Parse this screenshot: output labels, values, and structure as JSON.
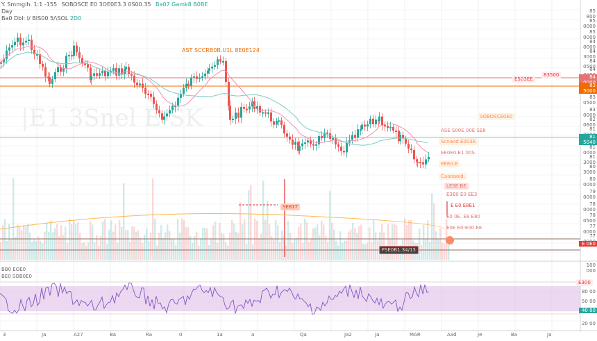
{
  "legend": {
    "symbol_line": "Y. Smmgih. 1:1 -155",
    "ohlc_text": "SOBOSCE E0 3OE0E3.3 0S00.35",
    "accent_text": "Ba07 Gamk8 B0BE",
    "line2": "Day",
    "line3": "Ba0 Dbl: I/ BIS00 5/\\SOL",
    "line3_accent": "2D0"
  },
  "overlay": {
    "watermark": "|E1 3Snel E SK",
    "label_top": "AST SCCRB0B.U1L 8E0E124",
    "label_mid": "SE81T",
    "label_box": "FSE0B1.34/13"
  },
  "right_labels": [
    {
      "y": 16,
      "text": "85 800"
    },
    {
      "y": 30,
      "text": "85 0000"
    },
    {
      "y": 46,
      "text": "85 0000"
    },
    {
      "y": 60,
      "text": "84 0000"
    },
    {
      "y": 74,
      "text": "84 3000"
    },
    {
      "y": 88,
      "text": "84 0500"
    },
    {
      "y": 100,
      "text": "84 0000"
    },
    {
      "y": 140,
      "text": "83 0500"
    },
    {
      "y": 158,
      "text": "83 0000"
    },
    {
      "y": 172,
      "text": "82 0600"
    },
    {
      "y": 186,
      "text": "81 0800"
    },
    {
      "y": 212,
      "text": "81 0000"
    },
    {
      "y": 226,
      "text": "81 3000"
    },
    {
      "y": 240,
      "text": "80 3000"
    },
    {
      "y": 258,
      "text": "80 0000"
    },
    {
      "y": 276,
      "text": "79 0000"
    },
    {
      "y": 294,
      "text": "78 0000"
    },
    {
      "y": 310,
      "text": "78 0500"
    },
    {
      "y": 326,
      "text": "77 0000"
    },
    {
      "y": 340,
      "text": "77 0000"
    },
    {
      "y": 382,
      "text": "100 000"
    },
    {
      "y": 420,
      "text": "80 00"
    },
    {
      "y": 434,
      "text": "50 00"
    },
    {
      "y": 466,
      "text": "20 00"
    }
  ],
  "price_tags": [
    {
      "y": 112,
      "text": "84 0000",
      "color": "#e57373"
    },
    {
      "y": 124,
      "text": "83 5000",
      "color": "#ef6c00"
    },
    {
      "y": 198,
      "text": "81 5040",
      "color": "#26a69a"
    },
    {
      "y": 352,
      "text": "E 0E0",
      "color": "#e53935"
    },
    {
      "y": 448,
      "text": "40 80",
      "color": "#26a69a"
    }
  ],
  "mid_tags": [
    {
      "x": 810,
      "y": 108,
      "text": "83500"
    },
    {
      "x": 768,
      "y": 114,
      "text": "E503EE"
    },
    {
      "x": 860,
      "y": 407,
      "text": "E300"
    }
  ],
  "annotations": [
    {
      "x": 688,
      "y": 168,
      "text": "SOBOSCE0E0",
      "color": "#ff8a65",
      "bg": "#fff3e0"
    },
    {
      "x": 632,
      "y": 188,
      "text": "ASE S00E 00E SE8",
      "color": "#e57373",
      "bg": "transparent"
    },
    {
      "x": 632,
      "y": 204,
      "text": "Scnaod E003E",
      "color": "#ff8a65",
      "bg": "#fff3e0"
    },
    {
      "x": 632,
      "y": 220,
      "text": "EE0E0.E1 00S.",
      "color": "#e57373",
      "bg": "transparent"
    },
    {
      "x": 632,
      "y": 236,
      "text": "EEE0.E",
      "color": "#ff8a65",
      "bg": "#fff3e0"
    },
    {
      "x": 632,
      "y": 254,
      "text": "Caaoaoid.",
      "color": "#ff8a65",
      "bg": "#fff3e0"
    },
    {
      "x": 640,
      "y": 268,
      "text": "LESE BE",
      "color": "#e57373",
      "bg": "#fde0dc"
    },
    {
      "x": 640,
      "y": 280,
      "text": "E3E0 E0 EE3",
      "color": "#e57373",
      "bg": "transparent"
    },
    {
      "x": 646,
      "y": 296,
      "text": "E E0 E8E1",
      "color": "#e53935",
      "bg": "transparent"
    },
    {
      "x": 640,
      "y": 312,
      "text": "E0 0E. E8 E80",
      "color": "#e57373",
      "bg": "transparent"
    },
    {
      "x": 640,
      "y": 328,
      "text": "E0E E0-E00 EE",
      "color": "#e57373",
      "bg": "transparent"
    }
  ],
  "osc": {
    "title1": "BB0 EOE0",
    "title2": "BE0 SOB0E0"
  },
  "time_labels": [
    {
      "x": 4,
      "text": "3"
    },
    {
      "x": 60,
      "text": "Ja"
    },
    {
      "x": 106,
      "text": "A27"
    },
    {
      "x": 158,
      "text": "Ba"
    },
    {
      "x": 210,
      "text": "Ra"
    },
    {
      "x": 258,
      "text": "0"
    },
    {
      "x": 312,
      "text": "1a"
    },
    {
      "x": 362,
      "text": "a"
    },
    {
      "x": 432,
      "text": "Qa"
    },
    {
      "x": 496,
      "text": "Ja2"
    },
    {
      "x": 540,
      "text": "Ja"
    },
    {
      "x": 590,
      "text": "MAR"
    },
    {
      "x": 644,
      "text": "Aad"
    },
    {
      "x": 688,
      "text": "Je"
    },
    {
      "x": 736,
      "text": "Ba"
    },
    {
      "x": 788,
      "text": "Ja"
    }
  ],
  "colors": {
    "up": "#26a69a",
    "down": "#ef5350",
    "ema_slow": "#80cbc4",
    "ema_fast": "#f48fb1",
    "osc_band": "#e1bee7",
    "osc_line": "#7e57c2"
  }
}
